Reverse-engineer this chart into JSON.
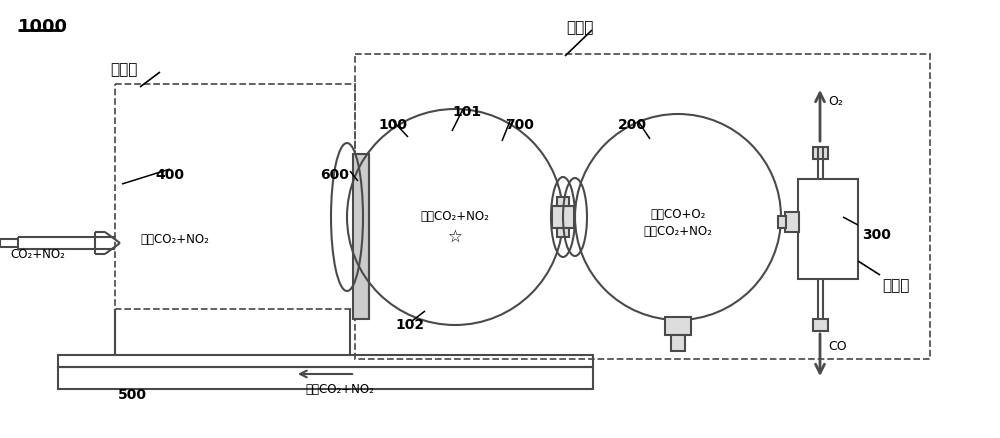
{
  "bg_color": "#ffffff",
  "line_color": "#4a4a4a",
  "title": "1000",
  "label_inlet": "入口段",
  "label_reaction": "反应段",
  "label_outlet": "出口段",
  "label_100": "100",
  "label_101": "101",
  "label_102": "102",
  "label_200": "200",
  "label_300": "300",
  "label_400": "400",
  "label_500": "500",
  "label_600": "600",
  "label_700": "700",
  "label_co2no2_in": "CO₂+NO₂",
  "label_gas_co2no2_mid": "气态CO₂+NO₂",
  "label_gas_co2no2_inner": "气态CO₂+NO₂",
  "label_gas_co_o2": "气态CO+O₂",
  "label_liq_co2no2_inner": "液态CO₂+NO₂",
  "label_liq_co2no2_bottom": "液态CO₂+NO₂",
  "label_o2": "O₂",
  "label_co": "CO"
}
